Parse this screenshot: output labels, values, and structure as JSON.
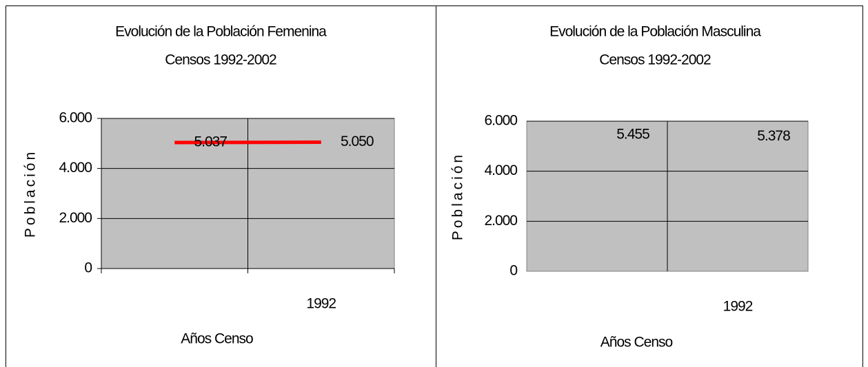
{
  "chart_data": [
    {
      "type": "line",
      "title": "Evolución de la Población Femenina",
      "subtitle": "Censos 1992-2002",
      "x_label": "Años Censo",
      "y_label": "Población",
      "categories": [
        null,
        "1992"
      ],
      "series": [
        {
          "color": "#ff0000",
          "values": [
            5037,
            5050
          ],
          "value_labels": [
            "5.037",
            "5.050"
          ]
        }
      ],
      "ylim": [
        0,
        6000
      ],
      "yticks": [
        0,
        {
          "value": 2000,
          "label": "2.000"
        },
        {
          "value": 4000,
          "label": "4.000"
        },
        {
          "value": 6000,
          "label": "6.000"
        }
      ],
      "grid": true
    },
    {
      "type": "line",
      "title": "Evolución de la Población Masculina",
      "subtitle": "Censos 1992-2002",
      "x_label": "Años Censo",
      "y_label": "Población",
      "categories": [
        null,
        "1992"
      ],
      "series": [
        {
          "color": "none",
          "values": [
            5455,
            5378
          ],
          "value_labels": [
            "5.455",
            "5.378"
          ]
        }
      ],
      "ylim": [
        0,
        6000
      ],
      "yticks": [
        0,
        {
          "value": 2000,
          "label": "2.000"
        },
        {
          "value": 4000,
          "label": "4.000"
        },
        {
          "value": 6000,
          "label": "6.000"
        }
      ],
      "grid": true
    }
  ]
}
